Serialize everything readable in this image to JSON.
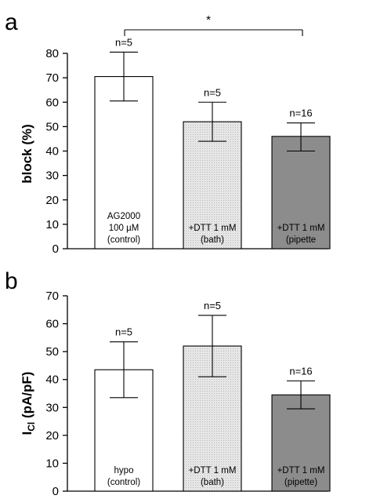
{
  "chart_data": [
    {
      "type": "bar",
      "panel": "a",
      "ylabel": "block (%)",
      "ylim": [
        0,
        80
      ],
      "yticks": [
        0,
        10,
        20,
        30,
        40,
        50,
        60,
        70,
        80
      ],
      "categories": [
        [
          "AG2000",
          "100 µM",
          "(control)"
        ],
        [
          "+DTT 1 mM",
          "(bath)"
        ],
        [
          "+DTT 1 mM",
          "(pipette"
        ]
      ],
      "values": [
        70.5,
        52,
        46
      ],
      "error_upper": [
        80.5,
        60,
        51.5
      ],
      "error_lower": [
        60.5,
        44,
        40
      ],
      "n_labels": [
        "n=5",
        "n=5",
        "n=16"
      ],
      "bar_colors": [
        "#ffffff",
        "#dcdcdc",
        "#8c8c8c"
      ],
      "significance": {
        "from": 0,
        "to": 2,
        "label": "*"
      }
    },
    {
      "type": "bar",
      "panel": "b",
      "ylabel": "ICl (pA/pF)",
      "ylabel_main": "I",
      "ylabel_sub": "Cl",
      "ylabel_rest": " (pA/pF)",
      "ylim": [
        0,
        70
      ],
      "yticks": [
        0,
        10,
        20,
        30,
        40,
        50,
        60,
        70
      ],
      "categories": [
        [
          "hypo",
          "(control)"
        ],
        [
          "+DTT 1 mM",
          "(bath)"
        ],
        [
          "+DTT 1 mM",
          "(pipette)"
        ]
      ],
      "values": [
        43.5,
        52,
        34.5
      ],
      "error_upper": [
        53.5,
        63,
        39.5
      ],
      "error_lower": [
        33.5,
        41,
        29.5
      ],
      "n_labels": [
        "n=5",
        "n=5",
        "n=16"
      ],
      "bar_colors": [
        "#ffffff",
        "#dcdcdc",
        "#8c8c8c"
      ]
    }
  ]
}
